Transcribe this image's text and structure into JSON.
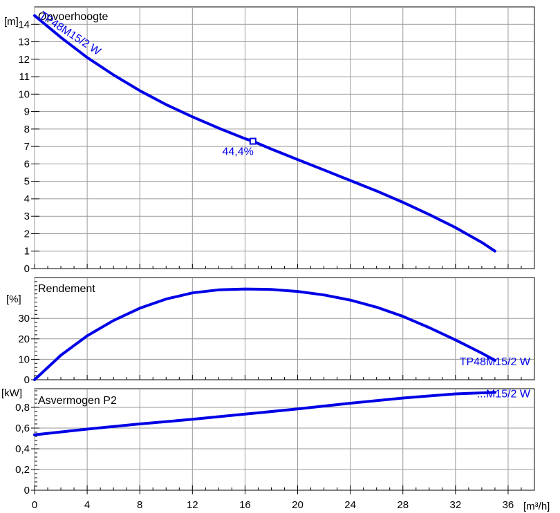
{
  "x_axis": {
    "min": 0,
    "max": 38,
    "ticks": [
      0,
      4,
      8,
      12,
      16,
      20,
      24,
      28,
      32,
      36
    ],
    "tick_labels": [
      "0",
      "4",
      "8",
      "12",
      "16",
      "20",
      "24",
      "28",
      "32",
      "36"
    ],
    "unit_label": "[m³/h]"
  },
  "panels": [
    {
      "id": "head",
      "title": "Opvoerhoogte",
      "unit_label": "[m]",
      "ymin": 0,
      "ymax": 15,
      "ticks": [
        0,
        1,
        2,
        3,
        4,
        5,
        6,
        7,
        8,
        9,
        10,
        11,
        12,
        13,
        14
      ],
      "tick_labels": [
        "0",
        "1",
        "2",
        "3",
        "4",
        "5",
        "6",
        "7",
        "8",
        "9",
        "10",
        "11",
        "12",
        "13",
        "14"
      ],
      "curve_label": "TP48M15/2 W",
      "duty_point": {
        "x": 16.6,
        "y": 7.3,
        "label": "44,4%"
      }
    },
    {
      "id": "efficiency",
      "title": "Rendement",
      "unit_label": "[%]",
      "ymin": 0,
      "ymax": 50,
      "ticks": [
        0,
        10,
        20,
        30
      ],
      "tick_labels": [
        "0",
        "10",
        "20",
        "30"
      ],
      "curve_label": "TP48M15/2 W"
    },
    {
      "id": "power",
      "title": "Asvermogen P2",
      "unit_label": "[kW]",
      "ymin": 0,
      "ymax": 0.98,
      "ticks": [
        0,
        0.2,
        0.4,
        0.6,
        0.8
      ],
      "tick_labels": [
        "0",
        "0,2",
        "0,4",
        "0,6",
        "0,8"
      ],
      "curve_label": "...M15/2 W"
    }
  ],
  "chart_data": [
    {
      "type": "line",
      "title": "Opvoerhoogte",
      "xlabel": "[m³/h]",
      "ylabel": "[m]",
      "xlim": [
        0,
        38
      ],
      "ylim": [
        0,
        15
      ],
      "grid": true,
      "series": [
        {
          "name": "TP48M15/2 W",
          "color": "#0000e6",
          "x": [
            0,
            2,
            4,
            6,
            8,
            10,
            12,
            14,
            16,
            16.6,
            18,
            20,
            22,
            24,
            26,
            28,
            30,
            32,
            34,
            35
          ],
          "y": [
            14.5,
            13.25,
            12.1,
            11.1,
            10.2,
            9.4,
            8.7,
            8.05,
            7.45,
            7.3,
            6.85,
            6.25,
            5.65,
            5.05,
            4.45,
            3.8,
            3.1,
            2.35,
            1.5,
            1.0
          ]
        }
      ]
    },
    {
      "type": "line",
      "title": "Rendement",
      "xlabel": "[m³/h]",
      "ylabel": "[%]",
      "xlim": [
        0,
        38
      ],
      "ylim": [
        0,
        50
      ],
      "grid": true,
      "series": [
        {
          "name": "TP48M15/2 W",
          "color": "#0000e6",
          "x": [
            0,
            2,
            4,
            6,
            8,
            10,
            12,
            14,
            16,
            18,
            20,
            22,
            24,
            26,
            28,
            30,
            32,
            34,
            35
          ],
          "y": [
            0,
            12,
            21.5,
            29,
            35,
            39.5,
            42.5,
            44,
            44.4,
            44.2,
            43.2,
            41.5,
            39,
            35.5,
            31,
            25.5,
            19.5,
            13,
            9.5
          ]
        }
      ]
    },
    {
      "type": "line",
      "title": "Asvermogen P2",
      "xlabel": "[m³/h]",
      "ylabel": "[kW]",
      "xlim": [
        0,
        38
      ],
      "ylim": [
        0,
        0.98
      ],
      "grid": true,
      "series": [
        {
          "name": "...M15/2 W",
          "color": "#0000e6",
          "x": [
            0,
            4,
            8,
            12,
            16,
            20,
            24,
            28,
            32,
            35
          ],
          "y": [
            0.535,
            0.59,
            0.64,
            0.685,
            0.735,
            0.785,
            0.84,
            0.89,
            0.93,
            0.945
          ]
        }
      ]
    }
  ]
}
